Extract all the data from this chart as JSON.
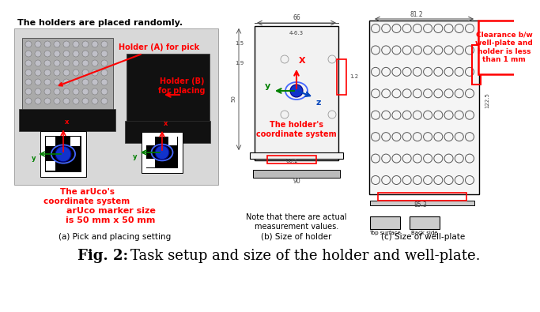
{
  "bg_color": "#ffffff",
  "fig_width": 6.4,
  "fig_height": 3.75,
  "subcaption_a": "(a) Pick and placing setting",
  "subcaption_b": "(b) Size of holder",
  "subcaption_c": "(c) Size of well-plate",
  "text_placed_randomly": "The holders are placed randomly.",
  "text_holder_a": "Holder (A) for pick",
  "text_holder_b": "Holder (B)\nfor placing",
  "text_aruco_coord": "The arUco's\ncoordinate system",
  "text_aruco_size": "arUco marker size\nis 50 mm x 50 mm",
  "text_holder_coord": "The holder's\ncoordinate system",
  "text_clearance": "Clearance b/w\nwell-plate and\nholder is less\nthan 1 mm",
  "text_note": "Note that there are actual\nmeasurement values.",
  "aruco_blue": "#1a3ccc",
  "red_text": "#cc0000",
  "dim_color": "#444444"
}
